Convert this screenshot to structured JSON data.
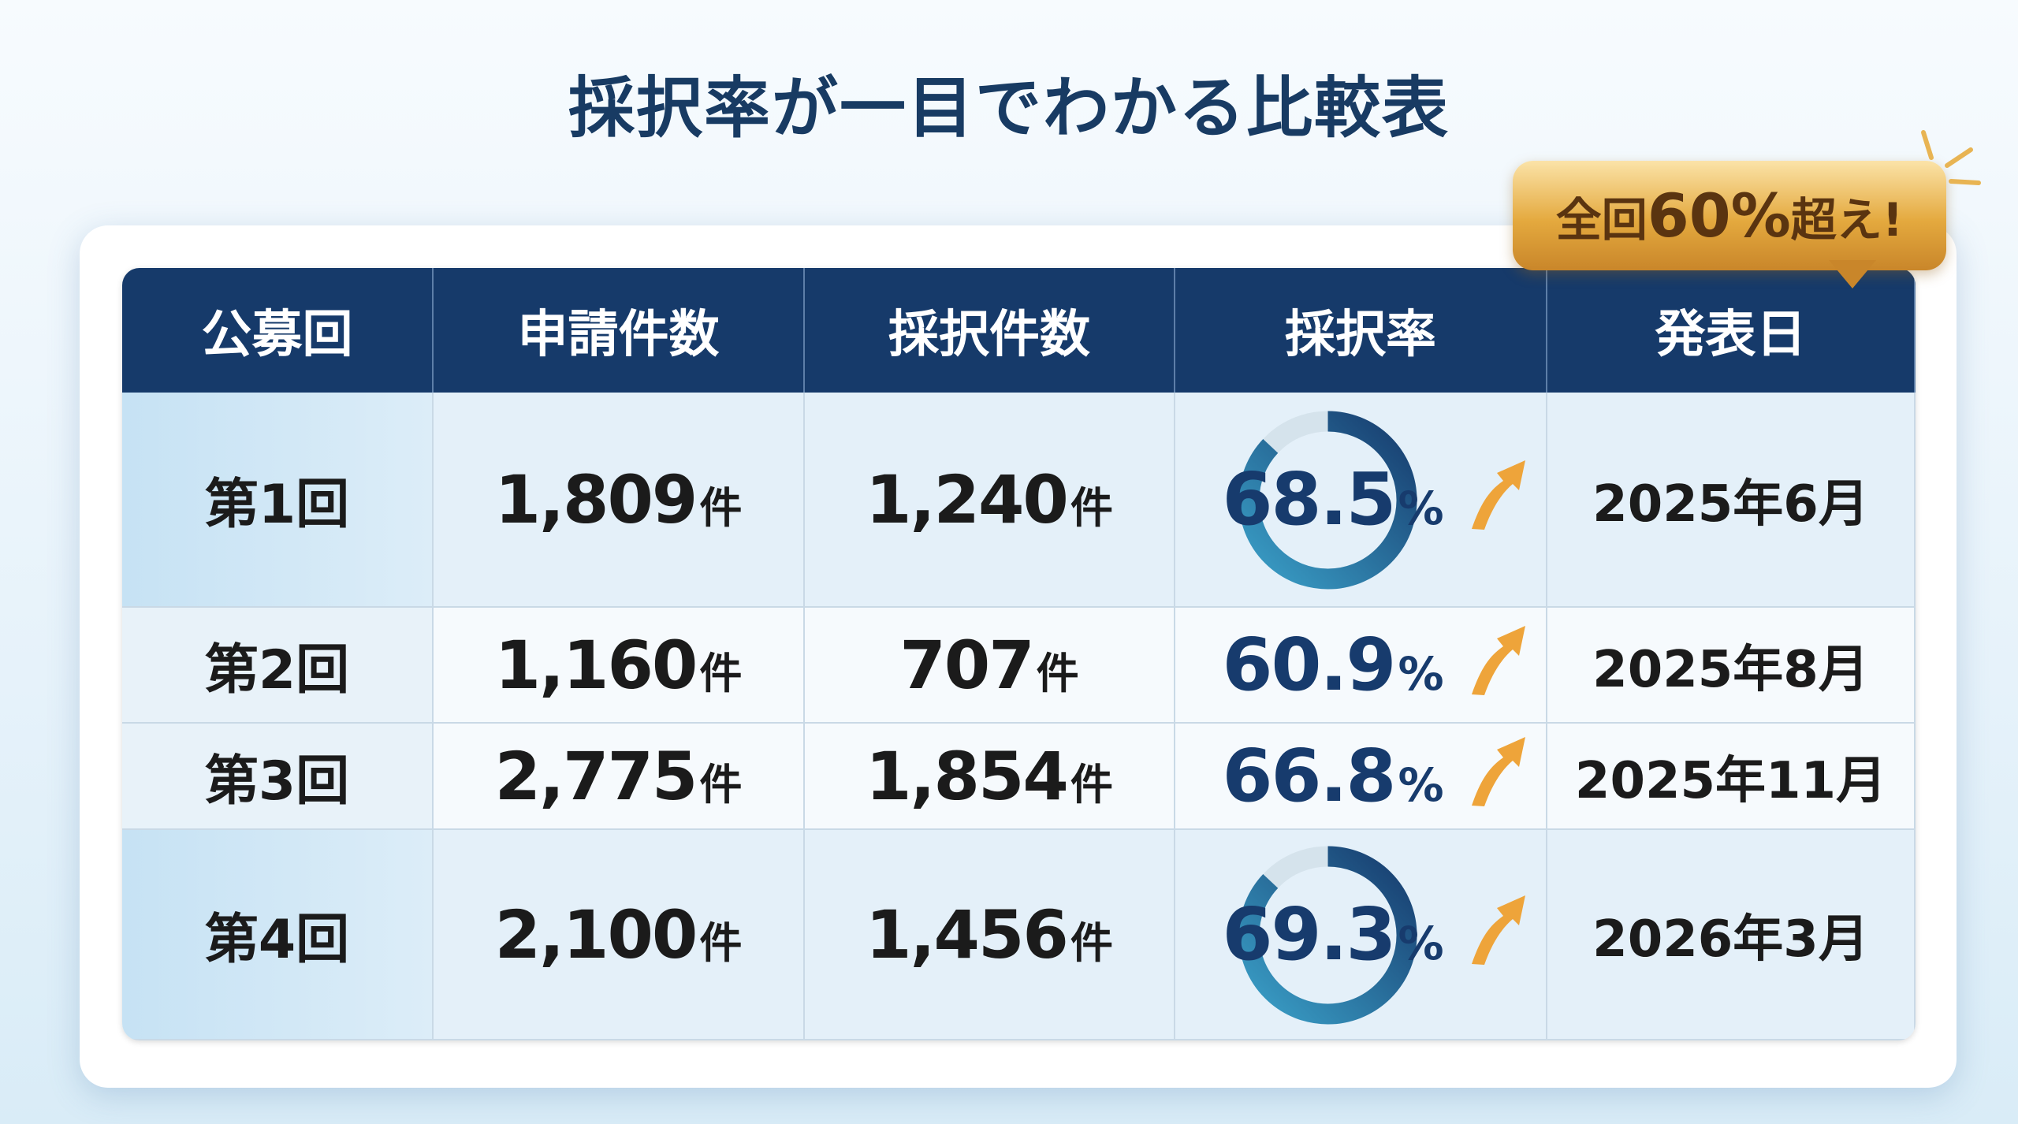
{
  "title": "採択率が一目でわかる比較表",
  "badge": {
    "parts": [
      "全回",
      "60%",
      "超え!"
    ]
  },
  "table": {
    "headers": [
      "公募回",
      "申請件数",
      "採択件数",
      "採択率",
      "発表日"
    ],
    "rows": [
      {
        "round": "第1回",
        "applications": {
          "number": "1,809",
          "unit": "件"
        },
        "adopted": {
          "number": "1,240",
          "unit": "件"
        },
        "rate": {
          "number": "68.5",
          "unit": "%"
        },
        "date": "2025年6月"
      },
      {
        "round": "第2回",
        "applications": {
          "number": "1,160",
          "unit": "件"
        },
        "adopted": {
          "number": "707",
          "unit": "件"
        },
        "rate": {
          "number": "60.9",
          "unit": "%"
        },
        "date": "2025年8月"
      },
      {
        "round": "第3回",
        "applications": {
          "number": "2,775",
          "unit": "件"
        },
        "adopted": {
          "number": "1,854",
          "unit": "件"
        },
        "rate": {
          "number": "66.8",
          "unit": "%"
        },
        "date": "2025年11月"
      },
      {
        "round": "第4回",
        "applications": {
          "number": "2,100",
          "unit": "件"
        },
        "adopted": {
          "number": "1,456",
          "unit": "件"
        },
        "rate": {
          "number": "69.3",
          "unit": "%"
        },
        "date": "2026年3月"
      }
    ]
  }
}
